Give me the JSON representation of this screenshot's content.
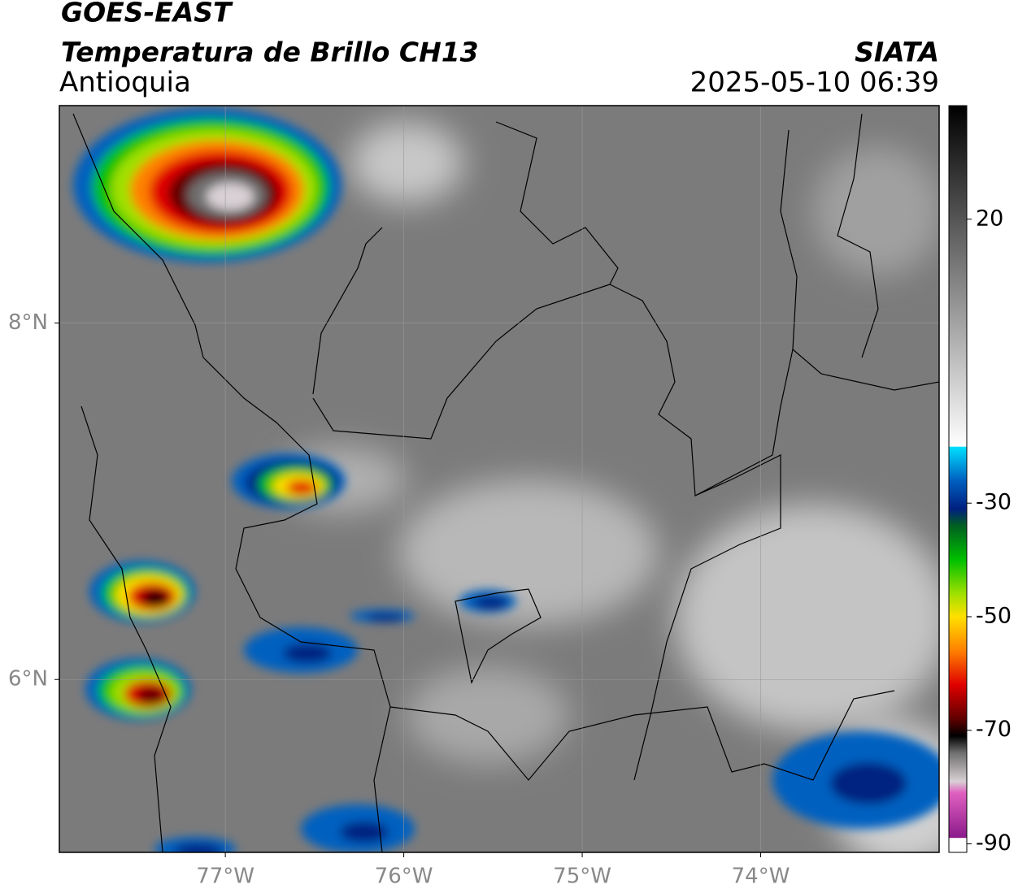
{
  "chart_data": {
    "type": "map",
    "title": "GOES-EAST",
    "subtitle": "Temperatura de Brillo CH13",
    "region": "Antioquia",
    "source": "SIATA",
    "timestamp": "2025-05-10 06:39",
    "xlim": [
      -77.93,
      -73.0
    ],
    "ylim": [
      5.03,
      9.22
    ],
    "xticks": [
      {
        "value": -77,
        "label": "77°W"
      },
      {
        "value": -76,
        "label": "76°W"
      },
      {
        "value": -75,
        "label": "75°W"
      },
      {
        "value": -74,
        "label": "74°W"
      }
    ],
    "yticks": [
      {
        "value": 8,
        "label": "8°N"
      },
      {
        "value": 6,
        "label": "6°N"
      }
    ],
    "grid": true,
    "colorbar": {
      "clim": [
        -91.5,
        40
      ],
      "ticks": [
        20,
        -30,
        -50,
        -70,
        -90
      ],
      "colormap": [
        {
          "value": -91.5,
          "color": "#ffffff"
        },
        {
          "value": -89,
          "color": "#ffffff"
        },
        {
          "value": -88.9,
          "color": "#8b1a8b"
        },
        {
          "value": -81,
          "color": "#e060c0"
        },
        {
          "value": -79,
          "color": "#d8d0d4"
        },
        {
          "value": -74,
          "color": "#707070"
        },
        {
          "value": -71,
          "color": "#000000"
        },
        {
          "value": -68,
          "color": "#600000"
        },
        {
          "value": -62,
          "color": "#e00000"
        },
        {
          "value": -56,
          "color": "#ff8000"
        },
        {
          "value": -50,
          "color": "#ffe000"
        },
        {
          "value": -46,
          "color": "#a0e000"
        },
        {
          "value": -40,
          "color": "#00c000"
        },
        {
          "value": -34,
          "color": "#006020"
        },
        {
          "value": -31,
          "color": "#002080"
        },
        {
          "value": -26,
          "color": "#0060c0"
        },
        {
          "value": -20.1,
          "color": "#00e0ff"
        },
        {
          "value": -20,
          "color": "#ffffff"
        },
        {
          "value": 40,
          "color": "#000000"
        }
      ]
    }
  }
}
